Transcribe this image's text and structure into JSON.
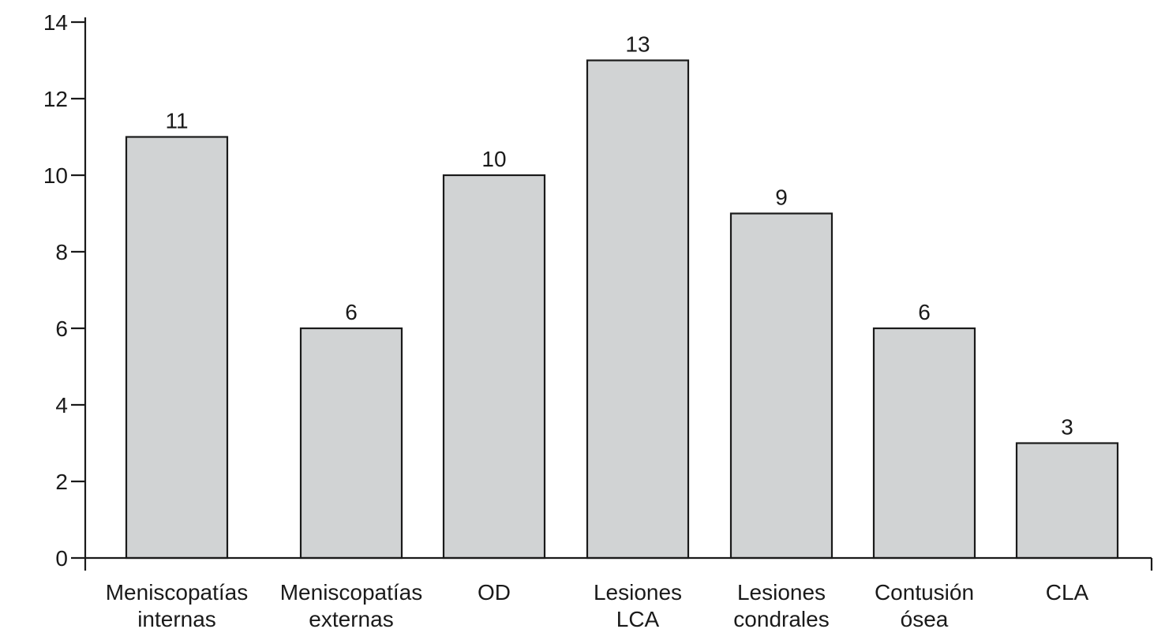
{
  "chart_data": {
    "type": "bar",
    "title": "",
    "xlabel": "",
    "ylabel": "",
    "categories": [
      [
        "Meniscopatías",
        "internas"
      ],
      [
        "Meniscopatías",
        "externas"
      ],
      [
        "OD"
      ],
      [
        "Lesiones",
        "LCA"
      ],
      [
        "Lesiones",
        "condrales"
      ],
      [
        "Contusión",
        "ósea"
      ],
      [
        "CLA"
      ]
    ],
    "values": [
      11,
      6,
      10,
      13,
      9,
      6,
      3
    ],
    "data_labels": [
      "11",
      "6",
      "10",
      "13",
      "9",
      "6",
      "3"
    ],
    "ylim": [
      0,
      14
    ],
    "yticks": [
      0,
      2,
      4,
      6,
      8,
      10,
      12,
      14
    ],
    "grid": false,
    "colors": {
      "bar_fill": "#d1d3d4",
      "bar_stroke": "#1a1a1a",
      "axis": "#1a1a1a"
    }
  }
}
